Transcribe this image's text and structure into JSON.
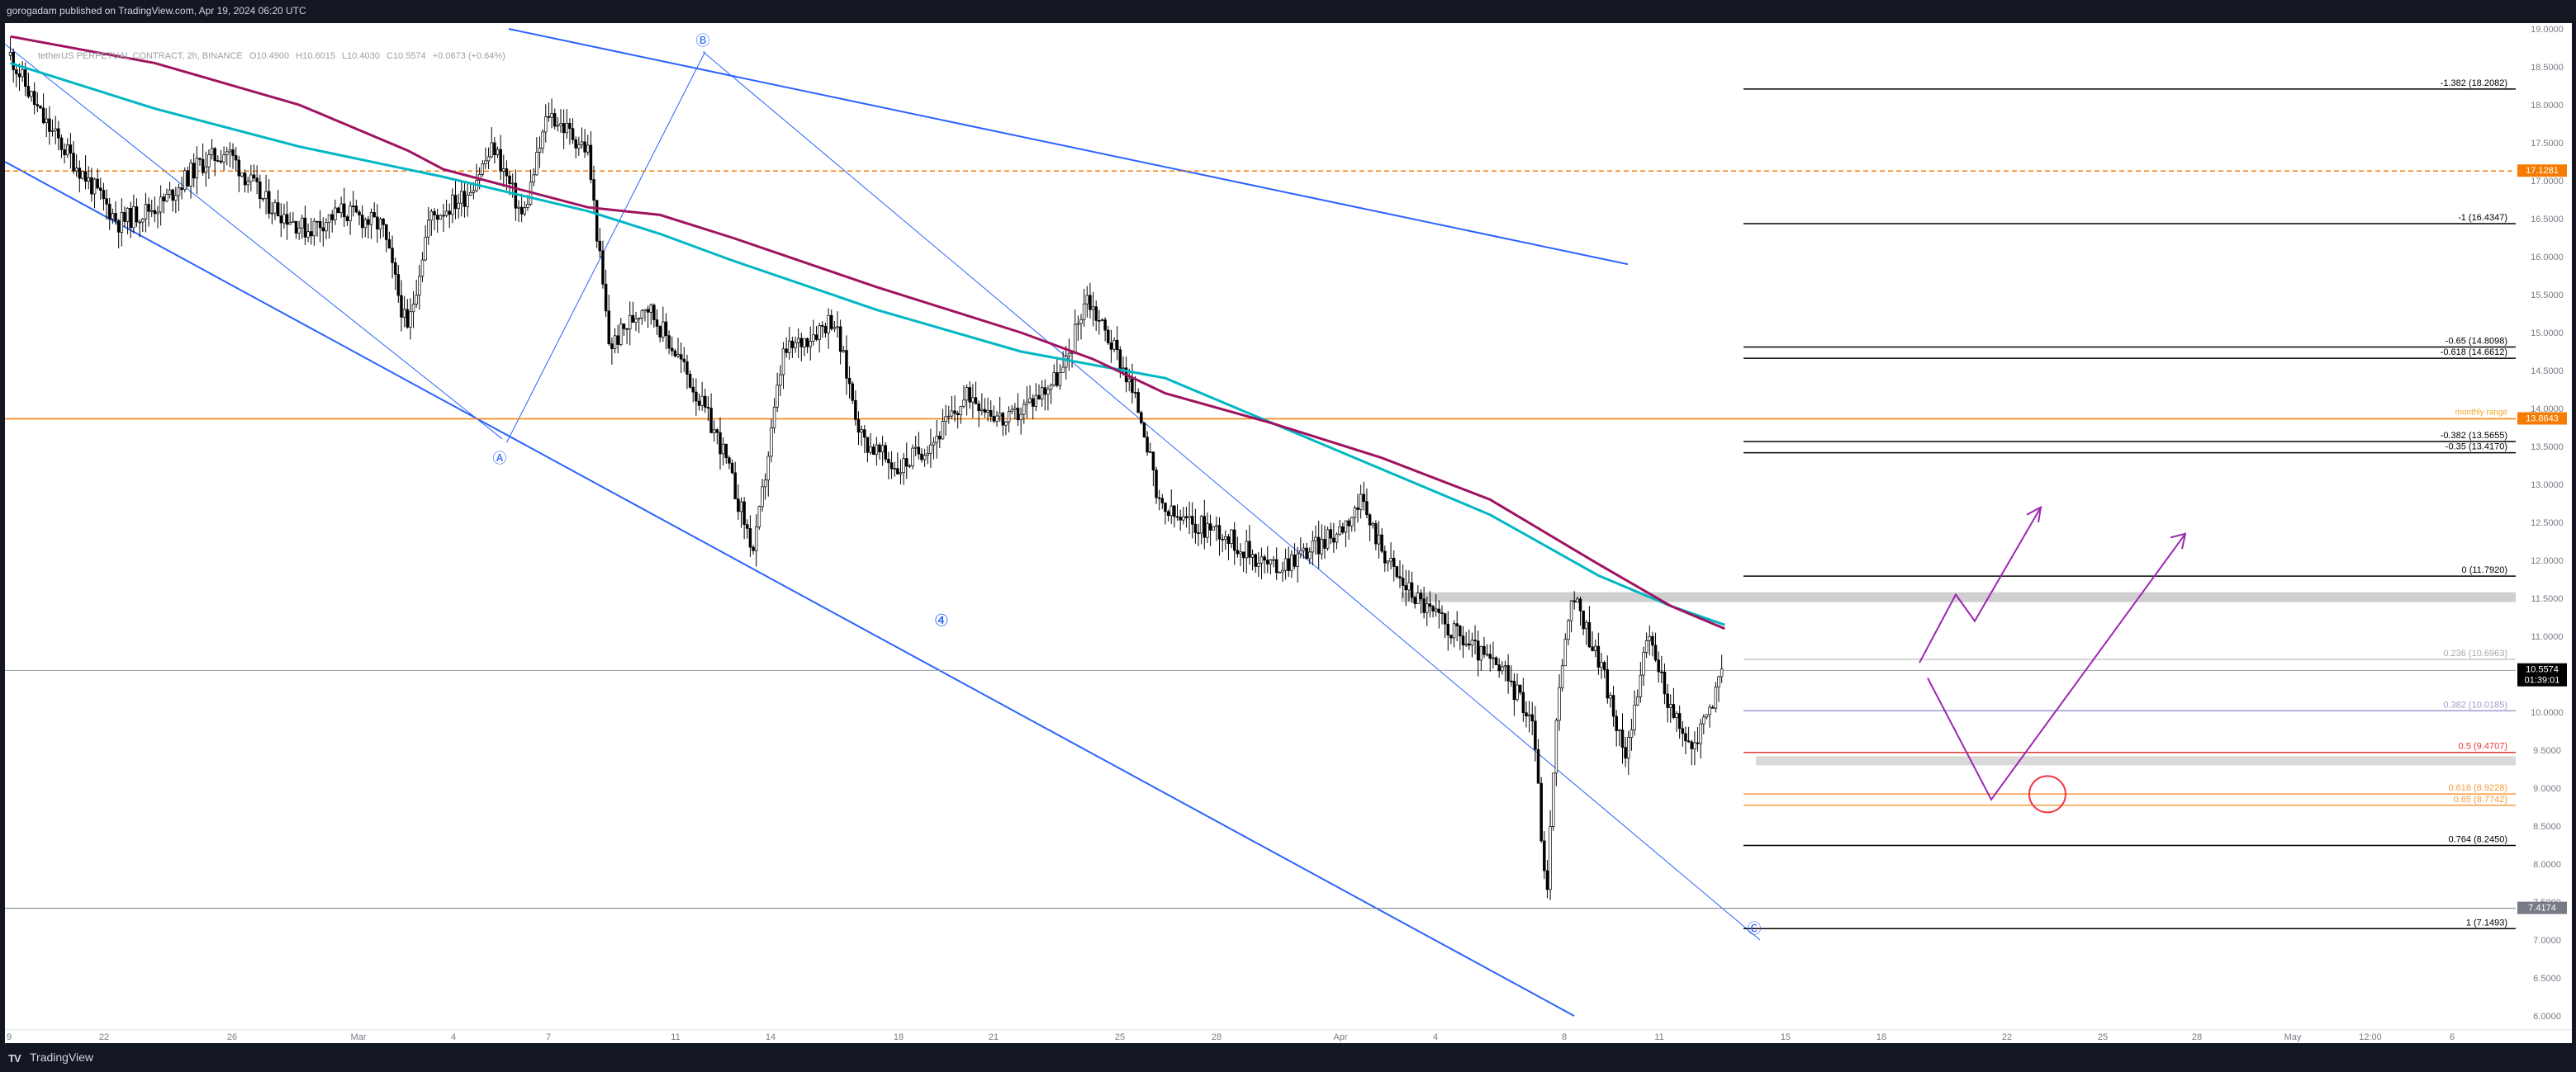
{
  "header": {
    "published": "gorogadam published on TradingView.com, Apr 19, 2024 06:20 UTC"
  },
  "legend": {
    "symbol": "tetherUS PERPETUAL CONTRACT, 2h, BINANCE",
    "open": "O10.4900",
    "high": "H10.6015",
    "low": "L10.4030",
    "close": "C10.5574",
    "change": "+0.0673 (+0.64%)"
  },
  "colors": {
    "background": "#ffffff",
    "frame": "#131722",
    "candle": "#000000",
    "ma_teal": "#00b7c3",
    "ma_maroon": "#a0135f",
    "channel_blue": "#2962ff",
    "orange_level": "#f57c00",
    "projection_purple": "#9c27b0",
    "target_circle": "#f23645",
    "last_price_label": "#000000",
    "gray_label": "#787b86"
  },
  "footer": {
    "logo_mark": "TV",
    "brand": "TradingView"
  },
  "chart_data": {
    "type": "candlestick",
    "title": "",
    "ylim": [
      6.0,
      19.0
    ],
    "y_ticks": [
      "6.0000",
      "6.5000",
      "7.0000",
      "7.5000",
      "8.0000",
      "8.5000",
      "9.0000",
      "9.5000",
      "10.0000",
      "10.5000",
      "11.0000",
      "11.5000",
      "12.0000",
      "12.5000",
      "13.0000",
      "13.5000",
      "14.0000",
      "14.5000",
      "15.0000",
      "15.5000",
      "16.0000",
      "16.5000",
      "17.0000",
      "17.5000",
      "18.0000",
      "18.5000",
      "19.0000"
    ],
    "x_ticks": [
      "9",
      "22",
      "26",
      "Mar",
      "4",
      "7",
      "11",
      "14",
      "18",
      "21",
      "25",
      "28",
      "Apr",
      "4",
      "8",
      "11",
      "15",
      "18",
      "22",
      "25",
      "28",
      "May",
      "12:00",
      "6"
    ],
    "price_path": [
      [
        0,
        18.65
      ],
      [
        0.9,
        17.8
      ],
      [
        2.0,
        17.1
      ],
      [
        3.0,
        16.45
      ],
      [
        4.2,
        16.7
      ],
      [
        5.2,
        17.2
      ],
      [
        6.0,
        17.4
      ],
      [
        7.0,
        16.75
      ],
      [
        8.2,
        16.35
      ],
      [
        9.2,
        16.6
      ],
      [
        10.3,
        16.4
      ],
      [
        11.0,
        15.0
      ],
      [
        11.6,
        16.5
      ],
      [
        12.6,
        16.8
      ],
      [
        13.4,
        17.45
      ],
      [
        14.2,
        16.5
      ],
      [
        14.9,
        17.9
      ],
      [
        16.0,
        17.4
      ],
      [
        16.6,
        14.8
      ],
      [
        17.6,
        15.4
      ],
      [
        18.6,
        14.6
      ],
      [
        19.7,
        13.5
      ],
      [
        20.6,
        12.1
      ],
      [
        21.4,
        14.7
      ],
      [
        22.8,
        15.2
      ],
      [
        23.6,
        13.6
      ],
      [
        24.6,
        13.2
      ],
      [
        25.6,
        13.6
      ],
      [
        26.6,
        14.2
      ],
      [
        27.6,
        13.8
      ],
      [
        29.2,
        14.5
      ],
      [
        29.8,
        15.5
      ],
      [
        30.8,
        14.6
      ],
      [
        31.4,
        13.8
      ],
      [
        31.8,
        12.7
      ],
      [
        32.5,
        12.5
      ],
      [
        33.5,
        12.4
      ],
      [
        34.0,
        12.2
      ],
      [
        35.0,
        11.9
      ],
      [
        36.6,
        12.3
      ],
      [
        37.4,
        12.75
      ],
      [
        38.4,
        11.8
      ],
      [
        39.4,
        11.3
      ],
      [
        40.4,
        10.9
      ],
      [
        41.4,
        10.5
      ],
      [
        42.2,
        9.9
      ],
      [
        42.55,
        7.5
      ],
      [
        42.9,
        10.4
      ],
      [
        43.3,
        11.5
      ],
      [
        44.1,
        10.6
      ],
      [
        44.7,
        9.4
      ],
      [
        45.4,
        11.0
      ],
      [
        46.1,
        9.9
      ],
      [
        46.6,
        9.5
      ],
      [
        47.1,
        10.1
      ],
      [
        47.5,
        10.55
      ]
    ],
    "moving_averages": [
      {
        "color": "teal",
        "points": [
          [
            0,
            18.55
          ],
          [
            4,
            17.95
          ],
          [
            8,
            17.45
          ],
          [
            12,
            17.05
          ],
          [
            16,
            16.6
          ],
          [
            18,
            16.3
          ],
          [
            20,
            15.95
          ],
          [
            24,
            15.3
          ],
          [
            28,
            14.75
          ],
          [
            32,
            14.4
          ],
          [
            35,
            13.8
          ],
          [
            38,
            13.2
          ],
          [
            41,
            12.6
          ],
          [
            44,
            11.8
          ],
          [
            46,
            11.4
          ],
          [
            47.5,
            11.15
          ]
        ]
      },
      {
        "color": "maroon",
        "points": [
          [
            0,
            18.9
          ],
          [
            4,
            18.55
          ],
          [
            8,
            18.0
          ],
          [
            11,
            17.4
          ],
          [
            12,
            17.15
          ],
          [
            16,
            16.65
          ],
          [
            18,
            16.55
          ],
          [
            20,
            16.25
          ],
          [
            24,
            15.6
          ],
          [
            28,
            15.0
          ],
          [
            30,
            14.65
          ],
          [
            32,
            14.2
          ],
          [
            35,
            13.8
          ],
          [
            38,
            13.35
          ],
          [
            41,
            12.8
          ],
          [
            44,
            11.95
          ],
          [
            46,
            11.4
          ],
          [
            47.5,
            11.1
          ]
        ]
      }
    ],
    "horizontal_levels": [
      {
        "price": 18.2082,
        "label": "-1.382 (18.2082)",
        "color": "#000000"
      },
      {
        "price": 16.4347,
        "label": "-1 (16.4347)",
        "color": "#000000"
      },
      {
        "price": 14.8098,
        "label": "-0.65 (14.8098)",
        "color": "#000000"
      },
      {
        "price": 14.6612,
        "label": "-0.618 (14.6612)",
        "color": "#000000"
      },
      {
        "price": 13.5655,
        "label": "-0.382 (13.5655)",
        "color": "#000000"
      },
      {
        "price": 13.417,
        "label": "-0.35 (13.4170)",
        "color": "#000000"
      },
      {
        "price": 11.792,
        "label": "0 (11.7920)",
        "color": "#000000"
      },
      {
        "price": 10.6963,
        "label": "0.236 (10.6963)",
        "color": "#c7c7c7"
      },
      {
        "price": 10.0185,
        "label": "0.382 (10.0185)",
        "color": "#9e9ccf"
      },
      {
        "price": 9.4707,
        "label": "0.5 (9.4707)",
        "color": "#e53935"
      },
      {
        "price": 8.9228,
        "label": "0.618 (8.9228)",
        "color": "#f59b3d"
      },
      {
        "price": 8.7742,
        "label": "0.65 (8.7742)",
        "color": "#f59b3d"
      },
      {
        "price": 8.245,
        "label": "0.764 (8.2450)",
        "color": "#000000"
      },
      {
        "price": 7.1493,
        "label": "1 (7.1493)",
        "color": "#000000"
      }
    ],
    "price_tags": [
      {
        "price": 17.1281,
        "label": "17.1281",
        "bg": "#f57c00"
      },
      {
        "price": 13.8643,
        "label": "13.8643",
        "bg": "#f57c00"
      },
      {
        "price": 10.5574,
        "label": "10.5574",
        "sub": "01:39:01",
        "bg": "#000000"
      },
      {
        "price": 7.4174,
        "label": "7.4174",
        "bg": "#787b86"
      }
    ],
    "monthly_range_label": "monthly range",
    "wave_labels": [
      "Ⓐ",
      "Ⓑ",
      "④",
      "Ⓒ"
    ]
  }
}
